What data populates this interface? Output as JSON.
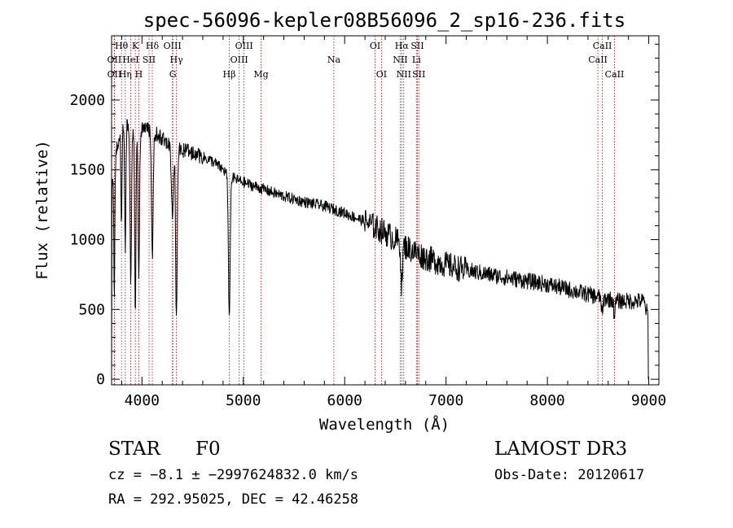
{
  "chart_data": {
    "type": "line",
    "title": "spec-56096-kepler08B56096_2_sp16-236.fits",
    "xlabel": "Wavelength (Å)",
    "ylabel": "Flux (relative)",
    "xlim": [
      3700,
      9100
    ],
    "ylim": [
      -40,
      2460
    ],
    "xticks": [
      4000,
      5000,
      6000,
      7000,
      8000,
      9000
    ],
    "yticks": [
      0,
      500,
      1000,
      1500,
      2000
    ],
    "grid": false,
    "colors": {
      "spectrum": "#000000",
      "line_markers": "#c00000",
      "axes": "#000000"
    },
    "spectral_lines": [
      {
        "label": "OII",
        "wavelength": 3727,
        "row": 2
      },
      {
        "label": "Hθ",
        "wavelength": 3798,
        "row": 1
      },
      {
        "label": "OII",
        "wavelength": 3728,
        "row": 3
      },
      {
        "label": "Hη",
        "wavelength": 3835,
        "row": 3
      },
      {
        "label": "HeI",
        "wavelength": 3889,
        "row": 2
      },
      {
        "label": "K",
        "wavelength": 3934,
        "row": 1
      },
      {
        "label": "SII",
        "wavelength": 4070,
        "row": 2
      },
      {
        "label": "H",
        "wavelength": 3969,
        "row": 3
      },
      {
        "label": "Hδ",
        "wavelength": 4102,
        "row": 1
      },
      {
        "label": "OIII",
        "wavelength": 4300,
        "row": 1
      },
      {
        "label": "Hγ",
        "wavelength": 4340,
        "row": 2
      },
      {
        "label": "G",
        "wavelength": 4304,
        "row": 3
      },
      {
        "label": "Hβ",
        "wavelength": 4861,
        "row": 3
      },
      {
        "label": "OIII",
        "wavelength": 5007,
        "row": 1
      },
      {
        "label": "OIII",
        "wavelength": 4959,
        "row": 2
      },
      {
        "label": "Mg",
        "wavelength": 5175,
        "row": 3
      },
      {
        "label": "Na",
        "wavelength": 5893,
        "row": 2
      },
      {
        "label": "OI",
        "wavelength": 6300,
        "row": 1
      },
      {
        "label": "OI",
        "wavelength": 6363,
        "row": 3
      },
      {
        "label": "Hα",
        "wavelength": 6563,
        "row": 1
      },
      {
        "label": "NII",
        "wavelength": 6548,
        "row": 2
      },
      {
        "label": "NII",
        "wavelength": 6583,
        "row": 3
      },
      {
        "label": "SII",
        "wavelength": 6717,
        "row": 1
      },
      {
        "label": "Li",
        "wavelength": 6708,
        "row": 2
      },
      {
        "label": "SII",
        "wavelength": 6731,
        "row": 3
      },
      {
        "label": "CaII",
        "wavelength": 8542,
        "row": 1
      },
      {
        "label": "CaII",
        "wavelength": 8498,
        "row": 2
      },
      {
        "label": "CaII",
        "wavelength": 8662,
        "row": 3
      }
    ],
    "spectrum": {
      "name": "flux",
      "x_range": [
        3700,
        9000
      ],
      "continuum_anchors": [
        [
          3700,
          1350
        ],
        [
          3750,
          1650
        ],
        [
          3800,
          1850
        ],
        [
          3900,
          1800
        ],
        [
          4000,
          1790
        ],
        [
          4100,
          1780
        ],
        [
          4200,
          1720
        ],
        [
          4300,
          1680
        ],
        [
          4400,
          1640
        ],
        [
          4500,
          1620
        ],
        [
          4600,
          1590
        ],
        [
          4700,
          1560
        ],
        [
          4800,
          1500
        ],
        [
          4900,
          1440
        ],
        [
          5000,
          1410
        ],
        [
          5200,
          1360
        ],
        [
          5400,
          1310
        ],
        [
          5600,
          1270
        ],
        [
          5800,
          1240
        ],
        [
          6000,
          1190
        ],
        [
          6200,
          1130
        ],
        [
          6400,
          1050
        ],
        [
          6600,
          950
        ],
        [
          6800,
          870
        ],
        [
          7000,
          820
        ],
        [
          7200,
          780
        ],
        [
          7500,
          740
        ],
        [
          8000,
          680
        ],
        [
          8500,
          590
        ],
        [
          8700,
          560
        ],
        [
          8950,
          560
        ],
        [
          9000,
          430
        ]
      ],
      "absorption_features": [
        [
          3727,
          900,
          5
        ],
        [
          3798,
          700,
          6
        ],
        [
          3835,
          900,
          6
        ],
        [
          3889,
          1100,
          7
        ],
        [
          3934,
          1400,
          6
        ],
        [
          3969,
          1100,
          7
        ],
        [
          4102,
          900,
          8
        ],
        [
          4300,
          500,
          10
        ],
        [
          4340,
          1250,
          8
        ],
        [
          4861,
          1000,
          9
        ],
        [
          6563,
          300,
          8
        ],
        [
          8542,
          120,
          8
        ],
        [
          8662,
          100,
          8
        ]
      ]
    }
  },
  "info": {
    "object_type": "STAR",
    "subclass": "F0",
    "survey": "LAMOST DR3",
    "redshift_line": "cz = −8.1 ± −2997624832.0 km/s",
    "obs_date_line": "Obs-Date: 20120617",
    "coords_line": "RA = 292.95025, DEC =  42.46258"
  }
}
